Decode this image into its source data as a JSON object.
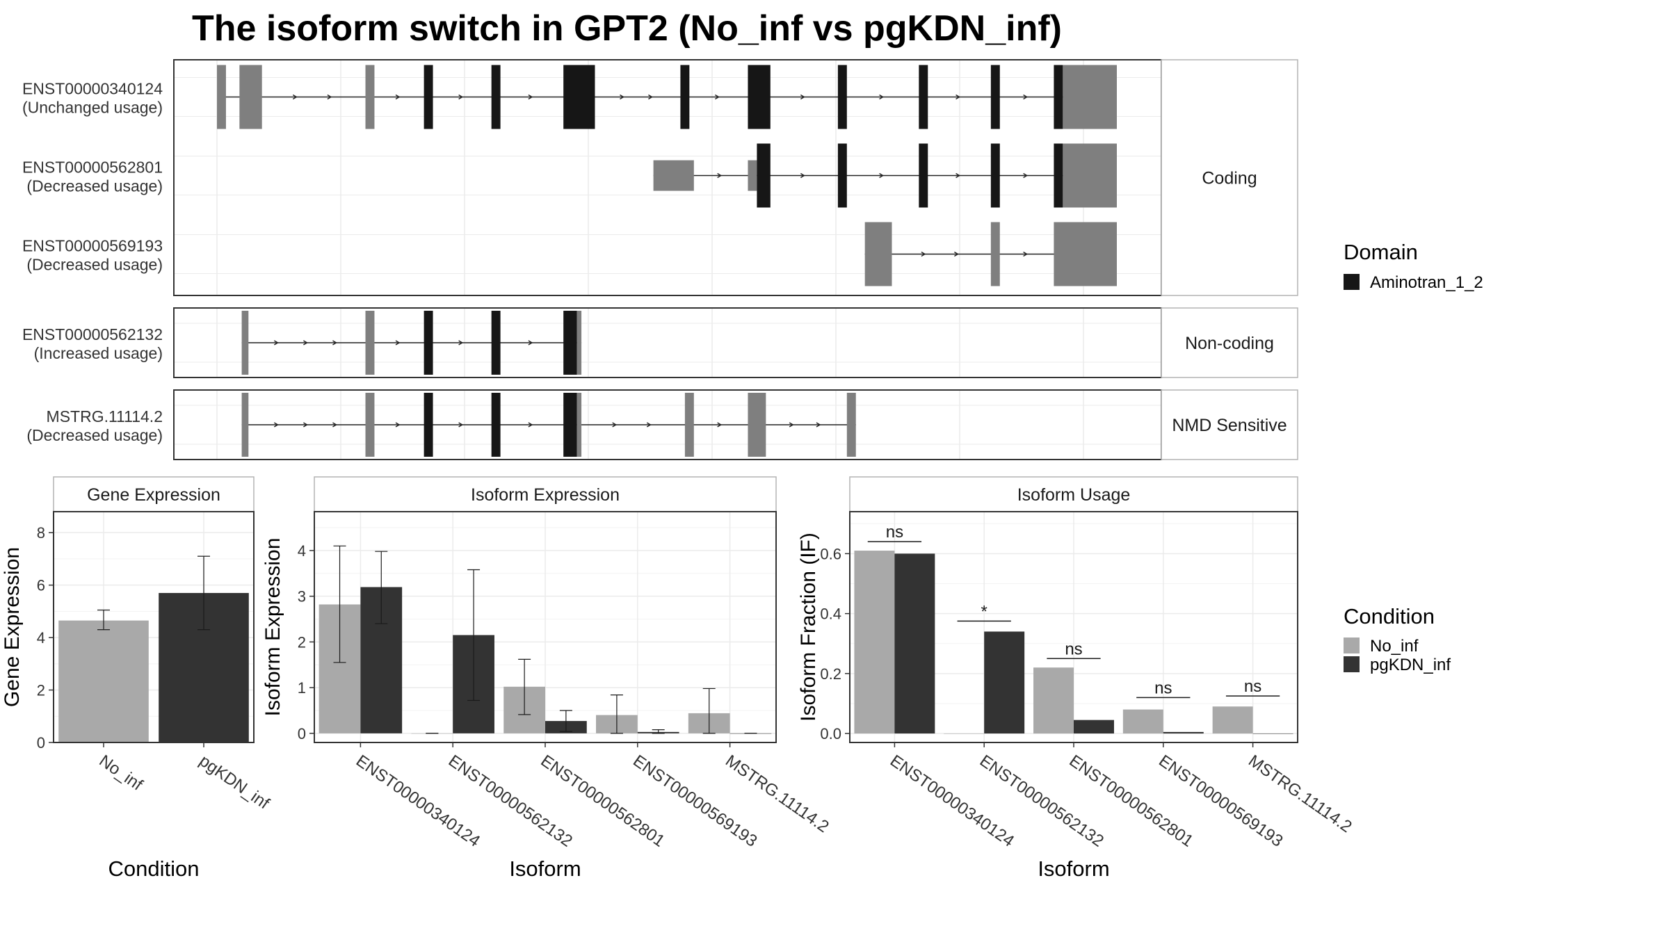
{
  "title": "The isoform switch in GPT2 (No_inf vs pgKDN_inf)",
  "colors": {
    "background": "#ffffff",
    "grid": "#ebebeb",
    "border": "#333333",
    "strip_border": "#b3b3b3",
    "strip_fill": "#ffffff",
    "domain": "#161616",
    "exon": "#7f7f7f",
    "no_inf": "#a9a9a9",
    "pgkdn_inf": "#333333",
    "text": "#333333",
    "title": "#000000"
  },
  "structure": {
    "groups": [
      {
        "label": "Coding",
        "transcripts": [
          {
            "id": "ENST00000340124",
            "usage": "(Unchanged usage)",
            "segments": [
              [
                0.0,
                0.02,
                "n"
              ],
              [
                0.05,
                0.1,
                "n"
              ],
              [
                0.33,
                0.35,
                "n"
              ],
              [
                0.46,
                0.48,
                "d"
              ],
              [
                0.61,
                0.63,
                "d"
              ],
              [
                0.77,
                0.84,
                "d"
              ],
              [
                1.03,
                1.05,
                "d"
              ],
              [
                1.18,
                1.23,
                "d"
              ],
              [
                1.38,
                1.4,
                "d"
              ],
              [
                1.56,
                1.58,
                "d"
              ],
              [
                1.72,
                1.74,
                "d"
              ],
              [
                1.86,
                1.88,
                "d"
              ],
              [
                1.88,
                2.0,
                "n"
              ]
            ],
            "small": [
              [
                0.05,
                0.06
              ]
            ]
          },
          {
            "id": "ENST00000562801",
            "usage": "(Decreased usage)",
            "segments": [
              [
                0.97,
                1.06,
                "n"
              ],
              [
                1.18,
                1.2,
                "n"
              ],
              [
                1.2,
                1.23,
                "d"
              ],
              [
                1.38,
                1.4,
                "d"
              ],
              [
                1.56,
                1.58,
                "d"
              ],
              [
                1.72,
                1.74,
                "d"
              ],
              [
                1.86,
                1.88,
                "d"
              ],
              [
                1.88,
                2.0,
                "n"
              ]
            ],
            "small": [
              [
                0.97,
                1.06
              ],
              [
                1.18,
                1.2
              ]
            ]
          },
          {
            "id": "ENST00000569193",
            "usage": "(Decreased usage)",
            "segments": [
              [
                1.44,
                1.5,
                "n"
              ],
              [
                1.72,
                1.74,
                "n"
              ],
              [
                1.86,
                2.0,
                "n"
              ]
            ],
            "small": [
              [
                1.44,
                1.48
              ],
              [
                1.88,
                2.0
              ]
            ]
          }
        ]
      },
      {
        "label": "Non-coding",
        "transcripts": [
          {
            "id": "ENST00000562132",
            "usage": "(Increased usage)",
            "segments": [
              [
                0.055,
                0.07,
                "n"
              ],
              [
                0.33,
                0.35,
                "n"
              ],
              [
                0.46,
                0.48,
                "d"
              ],
              [
                0.61,
                0.63,
                "d"
              ],
              [
                0.77,
                0.8,
                "d"
              ],
              [
                0.8,
                0.81,
                "n"
              ]
            ],
            "small": [
              [
                0.055,
                0.065
              ]
            ]
          }
        ]
      },
      {
        "label": "NMD Sensitive",
        "transcripts": [
          {
            "id": "MSTRG.11114.2",
            "usage": "(Decreased usage)",
            "segments": [
              [
                0.055,
                0.07,
                "n"
              ],
              [
                0.33,
                0.35,
                "n"
              ],
              [
                0.46,
                0.48,
                "d"
              ],
              [
                0.61,
                0.63,
                "d"
              ],
              [
                0.77,
                0.8,
                "d"
              ],
              [
                0.8,
                0.81,
                "n"
              ],
              [
                1.04,
                1.06,
                "n"
              ],
              [
                1.18,
                1.22,
                "n"
              ],
              [
                1.4,
                1.42,
                "n"
              ]
            ],
            "small": [
              [
                0.055,
                0.065
              ],
              [
                1.22,
                1.22
              ]
            ]
          }
        ]
      }
    ]
  },
  "legend_domain": {
    "title": "Domain",
    "items": [
      {
        "label": "Aminotran_1_2",
        "color": "#161616"
      }
    ]
  },
  "legend_condition": {
    "title": "Condition",
    "items": [
      {
        "label": "No_inf",
        "color": "#a9a9a9"
      },
      {
        "label": "pgKDN_inf",
        "color": "#333333"
      }
    ]
  },
  "chart_data": [
    {
      "type": "bar",
      "title": "Gene Expression",
      "xlabel": "Condition",
      "ylabel": "Gene Expression",
      "categories": [
        "No_inf",
        "pgKDN_inf"
      ],
      "series": [
        {
          "name": "No_inf",
          "values": [
            4.65,
            null
          ],
          "err_low": [
            4.3,
            null
          ],
          "err_high": [
            5.05,
            null
          ]
        },
        {
          "name": "pgKDN_inf",
          "values": [
            null,
            5.7
          ],
          "err_low": [
            null,
            4.3
          ],
          "err_high": [
            null,
            7.1
          ]
        }
      ],
      "ylim": [
        0,
        8.8
      ],
      "yticks": [
        0,
        2,
        4,
        6,
        8
      ],
      "grid": true,
      "legend": "right"
    },
    {
      "type": "bar",
      "title": "Isoform Expression",
      "xlabel": "Isoform",
      "ylabel": "Isoform Expression",
      "categories": [
        "ENST00000340124",
        "ENST00000562132",
        "ENST00000562801",
        "ENST00000569193",
        "MSTRG.11114.2"
      ],
      "series": [
        {
          "name": "No_inf",
          "values": [
            2.82,
            0.0,
            1.02,
            0.4,
            0.44
          ],
          "err_low": [
            1.55,
            0.0,
            0.41,
            0.0,
            0.0
          ],
          "err_high": [
            4.1,
            0.0,
            1.62,
            0.84,
            0.98
          ]
        },
        {
          "name": "pgKDN_inf",
          "values": [
            3.2,
            2.15,
            0.27,
            0.03,
            0.0
          ],
          "err_low": [
            2.4,
            0.72,
            0.04,
            0.0,
            0.0
          ],
          "err_high": [
            3.98,
            3.58,
            0.5,
            0.08,
            0.0
          ]
        }
      ],
      "ylim": [
        -0.2,
        4.85
      ],
      "yticks": [
        0,
        1,
        2,
        3,
        4
      ],
      "grid": true,
      "legend": "right"
    },
    {
      "type": "bar",
      "title": "Isoform Usage",
      "xlabel": "Isoform",
      "ylabel": "Isoform Fraction (IF)",
      "categories": [
        "ENST00000340124",
        "ENST00000562132",
        "ENST00000562801",
        "ENST00000569193",
        "MSTRG.11114.2"
      ],
      "series": [
        {
          "name": "No_inf",
          "values": [
            0.61,
            0.0,
            0.22,
            0.08,
            0.09
          ]
        },
        {
          "name": "pgKDN_inf",
          "values": [
            0.6,
            0.34,
            0.045,
            0.005,
            0.0
          ]
        }
      ],
      "significance": [
        "ns",
        "*",
        "ns",
        "ns",
        "ns"
      ],
      "sig_level": [
        0.64,
        0.375,
        0.25,
        0.12,
        0.125
      ],
      "ylim": [
        -0.03,
        0.74
      ],
      "yticks": [
        0.0,
        0.2,
        0.4,
        0.6
      ],
      "ytick_labels": [
        "0.0",
        "0.2",
        "0.4",
        "0.6"
      ],
      "grid": true,
      "legend": "right"
    }
  ]
}
